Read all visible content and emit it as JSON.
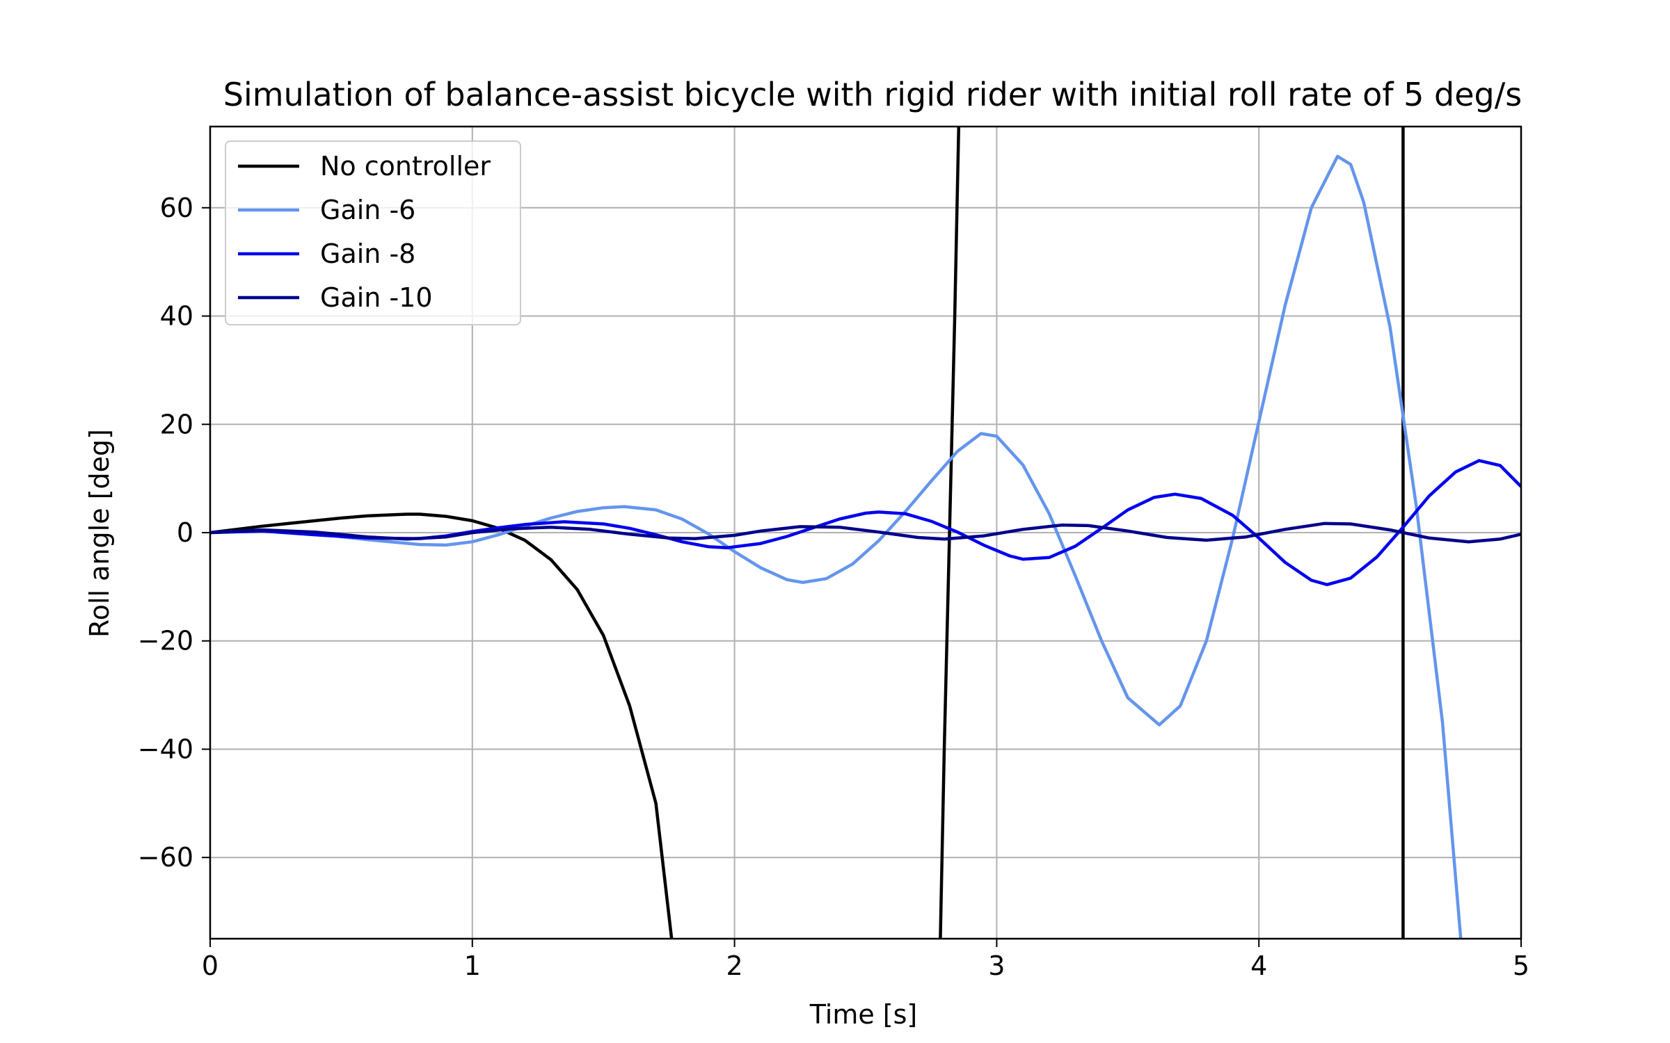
{
  "chart_data": {
    "type": "line",
    "title": "Simulation of balance-assist bicycle with rigid rider with initial roll rate of 5 deg/s",
    "xlabel": "Time [s]",
    "ylabel": "Roll angle [deg]",
    "xlim": [
      0,
      5
    ],
    "ylim": [
      -75,
      75
    ],
    "xticks": [
      0,
      1,
      2,
      3,
      4,
      5
    ],
    "xtick_labels": [
      "0",
      "1",
      "2",
      "3",
      "4",
      "5"
    ],
    "yticks": [
      -60,
      -40,
      -20,
      0,
      20,
      40,
      60
    ],
    "ytick_labels": [
      "−60",
      "−40",
      "−20",
      "0",
      "20",
      "40",
      "60"
    ],
    "grid": true,
    "legend_position": "upper-left",
    "series": [
      {
        "name": "No controller",
        "color": "#000000",
        "points": [
          [
            0,
            0
          ],
          [
            0.1,
            0.6
          ],
          [
            0.2,
            1.2
          ],
          [
            0.3,
            1.7
          ],
          [
            0.4,
            2.2
          ],
          [
            0.5,
            2.7
          ],
          [
            0.6,
            3.1
          ],
          [
            0.7,
            3.3
          ],
          [
            0.75,
            3.4
          ],
          [
            0.8,
            3.4
          ],
          [
            0.9,
            3.0
          ],
          [
            1.0,
            2.2
          ],
          [
            1.1,
            0.8
          ],
          [
            1.2,
            -1.4
          ],
          [
            1.3,
            -5.0
          ],
          [
            1.4,
            -10.5
          ],
          [
            1.5,
            -19.0
          ],
          [
            1.6,
            -32.0
          ],
          [
            1.7,
            -50.0
          ],
          [
            1.76,
            -75
          ],
          null,
          [
            2.785,
            -75
          ],
          [
            2.8,
            -40
          ],
          [
            2.82,
            0
          ],
          [
            2.84,
            40
          ],
          [
            2.855,
            75
          ],
          null,
          [
            4.55,
            75
          ],
          [
            4.55,
            -75
          ]
        ]
      },
      {
        "name": "Gain -6",
        "color": "#6495ED",
        "points": [
          [
            0,
            0
          ],
          [
            0.2,
            0.4
          ],
          [
            0.4,
            -0.2
          ],
          [
            0.6,
            -1.3
          ],
          [
            0.8,
            -2.2
          ],
          [
            0.9,
            -2.3
          ],
          [
            1.0,
            -1.7
          ],
          [
            1.1,
            -0.4
          ],
          [
            1.2,
            1.2
          ],
          [
            1.3,
            2.7
          ],
          [
            1.4,
            3.9
          ],
          [
            1.5,
            4.6
          ],
          [
            1.58,
            4.8
          ],
          [
            1.7,
            4.2
          ],
          [
            1.8,
            2.5
          ],
          [
            1.9,
            -0.2
          ],
          [
            2.0,
            -3.5
          ],
          [
            2.1,
            -6.5
          ],
          [
            2.2,
            -8.7
          ],
          [
            2.26,
            -9.2
          ],
          [
            2.35,
            -8.5
          ],
          [
            2.45,
            -5.8
          ],
          [
            2.55,
            -1.5
          ],
          [
            2.65,
            3.8
          ],
          [
            2.75,
            9.5
          ],
          [
            2.85,
            15.0
          ],
          [
            2.94,
            18.3
          ],
          [
            3.0,
            17.8
          ],
          [
            3.1,
            12.5
          ],
          [
            3.2,
            3.5
          ],
          [
            3.3,
            -8.0
          ],
          [
            3.4,
            -20.0
          ],
          [
            3.5,
            -30.5
          ],
          [
            3.62,
            -35.5
          ],
          [
            3.7,
            -32.0
          ],
          [
            3.8,
            -20.0
          ],
          [
            3.9,
            -1.0
          ],
          [
            4.0,
            20.5
          ],
          [
            4.1,
            42.0
          ],
          [
            4.2,
            60.0
          ],
          [
            4.3,
            69.5
          ],
          [
            4.35,
            68.0
          ],
          [
            4.4,
            61.0
          ],
          [
            4.5,
            38.0
          ],
          [
            4.6,
            5.0
          ],
          [
            4.7,
            -35.0
          ],
          [
            4.77,
            -75
          ]
        ]
      },
      {
        "name": "Gain -8",
        "color": "#0000EE",
        "points": [
          [
            0,
            0
          ],
          [
            0.2,
            0.3
          ],
          [
            0.4,
            -0.4
          ],
          [
            0.6,
            -1.0
          ],
          [
            0.8,
            -1.1
          ],
          [
            0.9,
            -0.6
          ],
          [
            1.0,
            0.2
          ],
          [
            1.1,
            0.9
          ],
          [
            1.2,
            1.5
          ],
          [
            1.35,
            2.0
          ],
          [
            1.5,
            1.6
          ],
          [
            1.6,
            0.8
          ],
          [
            1.7,
            -0.4
          ],
          [
            1.8,
            -1.7
          ],
          [
            1.9,
            -2.6
          ],
          [
            1.97,
            -2.8
          ],
          [
            2.1,
            -2.0
          ],
          [
            2.2,
            -0.7
          ],
          [
            2.3,
            0.9
          ],
          [
            2.4,
            2.5
          ],
          [
            2.5,
            3.6
          ],
          [
            2.55,
            3.8
          ],
          [
            2.65,
            3.5
          ],
          [
            2.75,
            2.1
          ],
          [
            2.85,
            0.1
          ],
          [
            2.95,
            -2.3
          ],
          [
            3.05,
            -4.3
          ],
          [
            3.1,
            -4.9
          ],
          [
            3.2,
            -4.6
          ],
          [
            3.3,
            -2.5
          ],
          [
            3.4,
            0.8
          ],
          [
            3.5,
            4.2
          ],
          [
            3.6,
            6.5
          ],
          [
            3.68,
            7.1
          ],
          [
            3.78,
            6.3
          ],
          [
            3.9,
            3.2
          ],
          [
            4.0,
            -1.0
          ],
          [
            4.1,
            -5.5
          ],
          [
            4.2,
            -8.8
          ],
          [
            4.26,
            -9.6
          ],
          [
            4.35,
            -8.4
          ],
          [
            4.45,
            -4.5
          ],
          [
            4.55,
            1.0
          ],
          [
            4.65,
            6.8
          ],
          [
            4.75,
            11.2
          ],
          [
            4.84,
            13.3
          ],
          [
            4.92,
            12.4
          ],
          [
            5.0,
            8.5
          ]
        ]
      },
      {
        "name": "Gain -10",
        "color": "#00008B",
        "points": [
          [
            0,
            0
          ],
          [
            0.2,
            0.5
          ],
          [
            0.4,
            0.1
          ],
          [
            0.6,
            -0.8
          ],
          [
            0.75,
            -1.2
          ],
          [
            0.9,
            -0.8
          ],
          [
            1.0,
            0.0
          ],
          [
            1.15,
            0.7
          ],
          [
            1.3,
            1.0
          ],
          [
            1.45,
            0.6
          ],
          [
            1.6,
            -0.3
          ],
          [
            1.75,
            -1.0
          ],
          [
            1.85,
            -1.1
          ],
          [
            2.0,
            -0.5
          ],
          [
            2.1,
            0.3
          ],
          [
            2.25,
            1.1
          ],
          [
            2.4,
            1.0
          ],
          [
            2.55,
            0.1
          ],
          [
            2.7,
            -0.9
          ],
          [
            2.8,
            -1.2
          ],
          [
            2.95,
            -0.6
          ],
          [
            3.1,
            0.6
          ],
          [
            3.25,
            1.4
          ],
          [
            3.35,
            1.3
          ],
          [
            3.5,
            0.3
          ],
          [
            3.65,
            -0.9
          ],
          [
            3.8,
            -1.4
          ],
          [
            3.95,
            -0.8
          ],
          [
            4.1,
            0.6
          ],
          [
            4.25,
            1.7
          ],
          [
            4.35,
            1.6
          ],
          [
            4.5,
            0.5
          ],
          [
            4.65,
            -1.0
          ],
          [
            4.8,
            -1.7
          ],
          [
            4.92,
            -1.2
          ],
          [
            5.0,
            -0.3
          ]
        ]
      }
    ]
  }
}
